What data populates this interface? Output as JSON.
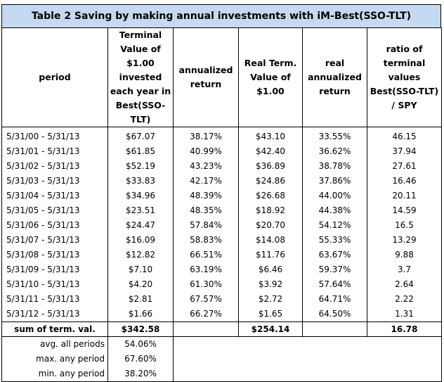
{
  "title": "Table 2     Saving by making annual investments with iM-Best(SSO-TLT)",
  "headers": [
    "period",
    "Terminal Value of $1.00 invested each year in Best(SSO-TLT)",
    "annualized return",
    "Real Term. Value of $1.00",
    "real annualized return",
    "ratio of terminal values Best(SSO-TLT) / SPY"
  ],
  "rows": [
    {
      "period": "5/31/00 - 5/31/13",
      "term": "$67.07",
      "ann": "38.17%",
      "real": "$43.10",
      "realann": "33.55%",
      "ratio": "46.15"
    },
    {
      "period": "5/31/01 - 5/31/13",
      "term": "$61.85",
      "ann": "40.99%",
      "real": "$42.40",
      "realann": "36.62%",
      "ratio": "37.94"
    },
    {
      "period": "5/31/02 - 5/31/13",
      "term": "$52.19",
      "ann": "43.23%",
      "real": "$36.89",
      "realann": "38.78%",
      "ratio": "27.61"
    },
    {
      "period": "5/31/03 - 5/31/13",
      "term": "$33.83",
      "ann": "42.17%",
      "real": "$24.86",
      "realann": "37.86%",
      "ratio": "16.46"
    },
    {
      "period": "5/31/04 - 5/31/13",
      "term": "$34.96",
      "ann": "48.39%",
      "real": "$26.68",
      "realann": "44.00%",
      "ratio": "20.11"
    },
    {
      "period": "5/31/05 - 5/31/13",
      "term": "$23.51",
      "ann": "48.35%",
      "real": "$18.92",
      "realann": "44.38%",
      "ratio": "14.59"
    },
    {
      "period": "5/31/06 - 5/31/13",
      "term": "$24.47",
      "ann": "57.84%",
      "real": "$20.70",
      "realann": "54.12%",
      "ratio": "16.5"
    },
    {
      "period": "5/31/07 - 5/31/13",
      "term": "$16.09",
      "ann": "58.83%",
      "real": "$14.08",
      "realann": "55.33%",
      "ratio": "13.29"
    },
    {
      "period": "5/31/08 - 5/31/13",
      "term": "$12.82",
      "ann": "66.51%",
      "real": "$11.76",
      "realann": "63.67%",
      "ratio": "9.88"
    },
    {
      "period": "5/31/09 - 5/31/13",
      "term": "$7.10",
      "ann": "63.19%",
      "real": "$6.46",
      "realann": "59.37%",
      "ratio": "3.7"
    },
    {
      "period": "5/31/10 - 5/31/13",
      "term": "$4.20",
      "ann": "61.30%",
      "real": "$3.92",
      "realann": "57.64%",
      "ratio": "2.64"
    },
    {
      "period": "5/31/11 - 5/31/13",
      "term": "$2.81",
      "ann": "67.57%",
      "real": "$2.72",
      "realann": "64.71%",
      "ratio": "2.22"
    },
    {
      "period": "5/31/12 - 5/31/13",
      "term": "$1.66",
      "ann": "66.27%",
      "real": "$1.65",
      "realann": "64.50%",
      "ratio": "1.31"
    }
  ],
  "sum": {
    "label": "sum of term. val.",
    "term": "$342.58",
    "real": "$254.14",
    "ratio": "16.78"
  },
  "stats": [
    {
      "label": "avg. all periods",
      "value": "54.06%"
    },
    {
      "label": "max. any period",
      "value": "67.60%"
    },
    {
      "label": "min. any period",
      "value": "38.20%"
    }
  ]
}
